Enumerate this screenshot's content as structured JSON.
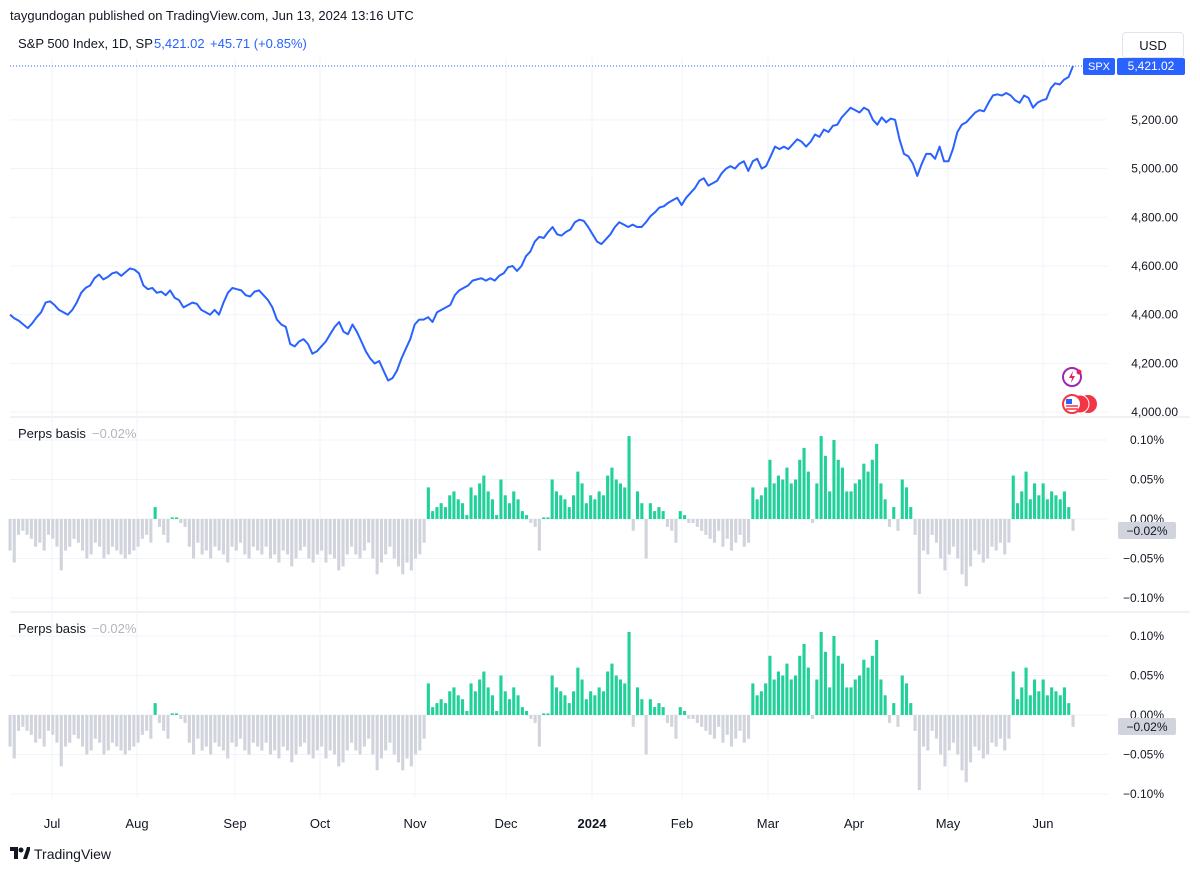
{
  "header": {
    "published_line": "taygundogan published on TradingView.com, Jun 13, 2024 13:16 UTC"
  },
  "main_pane": {
    "symbol_title": "S&P 500 Index, 1D, SP",
    "last_value": "5,421.02",
    "change": "+45.71 (+0.85%)",
    "currency_button": "USD",
    "price_tag_symbol": "SPX",
    "price_tag_value": "5,421.02"
  },
  "indicator_1": {
    "name": "Perps basis",
    "value": "−0.02%",
    "price_tag": "−0.02%"
  },
  "indicator_2": {
    "name": "Perps basis",
    "value": "−0.02%",
    "price_tag": "−0.02%"
  },
  "footer": {
    "brand": "TradingView"
  },
  "colors": {
    "line": "#2962ff",
    "positive_bar": "#22d19a",
    "negative_bar": "#d1d4dc",
    "grid": "#f0f3fa",
    "axis_text": "#131722"
  },
  "chart_data": [
    {
      "type": "line",
      "title": "S&P 500 Index, 1D, SP",
      "y_axis_ticks": [
        "5,200.00",
        "5,000.00",
        "4,800.00",
        "4,600.00",
        "4,400.00",
        "4,200.00",
        "4,000.00"
      ],
      "ylim": [
        3990,
        5430
      ],
      "x_axis_labels": [
        "Jul",
        "Aug",
        "Sep",
        "Oct",
        "Nov",
        "Dec",
        "2024",
        "Feb",
        "Mar",
        "Apr",
        "May",
        "Jun"
      ],
      "series": [
        {
          "values": [
            4400,
            4385,
            4375,
            4360,
            4345,
            4365,
            4390,
            4410,
            4450,
            4455,
            4440,
            4420,
            4410,
            4400,
            4420,
            4450,
            4490,
            4510,
            4520,
            4550,
            4565,
            4545,
            4555,
            4570,
            4575,
            4560,
            4575,
            4590,
            4585,
            4570,
            4520,
            4505,
            4510,
            4490,
            4495,
            4480,
            4500,
            4470,
            4460,
            4430,
            4440,
            4450,
            4445,
            4420,
            4410,
            4400,
            4420,
            4400,
            4450,
            4490,
            4510,
            4505,
            4500,
            4480,
            4475,
            4495,
            4500,
            4480,
            4460,
            4430,
            4380,
            4360,
            4350,
            4280,
            4270,
            4290,
            4300,
            4280,
            4240,
            4250,
            4270,
            4290,
            4320,
            4350,
            4370,
            4330,
            4320,
            4360,
            4330,
            4290,
            4250,
            4220,
            4200,
            4210,
            4170,
            4130,
            4140,
            4170,
            4220,
            4260,
            4300,
            4360,
            4380,
            4380,
            4390,
            4370,
            4410,
            4420,
            4430,
            4440,
            4480,
            4500,
            4510,
            4520,
            4540,
            4545,
            4550,
            4540,
            4550,
            4540,
            4560,
            4570,
            4595,
            4600,
            4580,
            4600,
            4640,
            4660,
            4700,
            4720,
            4715,
            4740,
            4760,
            4730,
            4725,
            4740,
            4750,
            4780,
            4790,
            4785,
            4760,
            4730,
            4700,
            4690,
            4710,
            4730,
            4760,
            4780,
            4770,
            4760,
            4770,
            4760,
            4760,
            4780,
            4805,
            4820,
            4840,
            4845,
            4860,
            4870,
            4880,
            4850,
            4880,
            4900,
            4920,
            4950,
            4960,
            4930,
            4940,
            4950,
            4980,
            5000,
            5010,
            5000,
            5020,
            5030,
            4990,
            5030,
            5040,
            5000,
            5010,
            5050,
            5090,
            5080,
            5090,
            5080,
            5100,
            5120,
            5110,
            5090,
            5110,
            5140,
            5130,
            5160,
            5150,
            5175,
            5180,
            5210,
            5230,
            5250,
            5240,
            5230,
            5250,
            5240,
            5200,
            5180,
            5210,
            5190,
            5205,
            5200,
            5120,
            5060,
            5050,
            5020,
            4970,
            5020,
            5060,
            5060,
            5040,
            5090,
            5030,
            5030,
            5080,
            5150,
            5180,
            5190,
            5210,
            5230,
            5240,
            5235,
            5270,
            5300,
            5305,
            5300,
            5310,
            5300,
            5280,
            5270,
            5300,
            5290,
            5250,
            5270,
            5280,
            5285,
            5330,
            5350,
            5345,
            5365,
            5376,
            5421
          ]
        }
      ]
    },
    {
      "type": "bar",
      "title": "Perps basis",
      "y_axis_ticks": [
        "0.10%",
        "0.05%",
        "0.00%",
        "−0.05%",
        "−0.10%"
      ],
      "ylim": [
        -0.1,
        0.1
      ],
      "values": [
        -0.04,
        -0.055,
        -0.02,
        -0.015,
        -0.02,
        -0.025,
        -0.035,
        -0.03,
        -0.04,
        -0.02,
        -0.025,
        -0.035,
        -0.065,
        -0.04,
        -0.035,
        -0.025,
        -0.03,
        -0.04,
        -0.05,
        -0.045,
        -0.03,
        -0.035,
        -0.05,
        -0.045,
        -0.035,
        -0.04,
        -0.045,
        -0.05,
        -0.045,
        -0.04,
        -0.035,
        -0.025,
        -0.02,
        -0.03,
        0.015,
        -0.01,
        -0.02,
        -0.03,
        0.002,
        0.002,
        -0.005,
        -0.01,
        -0.035,
        -0.05,
        -0.03,
        -0.045,
        -0.04,
        -0.05,
        -0.035,
        -0.04,
        -0.045,
        -0.055,
        -0.035,
        -0.04,
        -0.03,
        -0.045,
        -0.05,
        -0.035,
        -0.04,
        -0.045,
        -0.035,
        -0.05,
        -0.045,
        -0.055,
        -0.04,
        -0.045,
        -0.06,
        -0.05,
        -0.04,
        -0.035,
        -0.05,
        -0.055,
        -0.045,
        -0.04,
        -0.055,
        -0.045,
        -0.05,
        -0.065,
        -0.06,
        -0.045,
        -0.035,
        -0.045,
        -0.05,
        -0.04,
        -0.03,
        -0.05,
        -0.07,
        -0.055,
        -0.045,
        -0.035,
        -0.05,
        -0.06,
        -0.07,
        -0.055,
        -0.065,
        -0.05,
        -0.045,
        -0.03,
        0.04,
        0.01,
        0.015,
        0.02,
        0.015,
        0.03,
        0.035,
        0.025,
        0.02,
        0.005,
        0.04,
        0.03,
        0.045,
        0.055,
        0.035,
        0.025,
        0.005,
        0.05,
        0.03,
        0.02,
        0.035,
        0.025,
        0.01,
        0.005,
        -0.005,
        -0.01,
        -0.04,
        0.002,
        0.002,
        0.05,
        0.035,
        0.03,
        0.025,
        0.015,
        0.03,
        0.06,
        0.045,
        0.02,
        0.03,
        0.025,
        0.035,
        0.03,
        0.055,
        0.065,
        0.05,
        0.045,
        0.04,
        0.105,
        -0.015,
        0.035,
        0.02,
        -0.05,
        0.02,
        0.01,
        0.015,
        0.01,
        -0.01,
        -0.015,
        -0.03,
        0.01,
        0.005,
        -0.005,
        -0.005,
        -0.01,
        -0.015,
        -0.02,
        -0.025,
        -0.03,
        -0.015,
        -0.035,
        -0.025,
        -0.04,
        -0.03,
        -0.02,
        -0.035,
        -0.03,
        0.04,
        0.025,
        0.03,
        0.04,
        0.075,
        0.045,
        0.055,
        0.05,
        0.065,
        0.045,
        0.05,
        0.075,
        0.09,
        0.06,
        -0.005,
        0.045,
        0.105,
        0.08,
        0.035,
        0.1,
        0.075,
        0.065,
        0.035,
        0.035,
        0.045,
        0.05,
        0.07,
        0.06,
        0.075,
        0.095,
        0.045,
        0.025,
        -0.01,
        0.015,
        -0.015,
        0.05,
        0.04,
        0.015,
        -0.02,
        -0.095,
        -0.04,
        -0.045,
        -0.02,
        -0.03,
        -0.05,
        -0.065,
        -0.045,
        -0.035,
        -0.05,
        -0.07,
        -0.085,
        -0.06,
        -0.04,
        -0.045,
        -0.055,
        -0.05,
        -0.035,
        -0.04,
        -0.03,
        -0.045,
        -0.03,
        0.055,
        0.02,
        0.035,
        0.06,
        0.025,
        0.045,
        0.03,
        0.045,
        0.025,
        0.035,
        0.03,
        0.025,
        0.035,
        0.015,
        -0.015
      ]
    },
    {
      "type": "bar",
      "title": "Perps basis",
      "y_axis_ticks": [
        "0.10%",
        "0.05%",
        "0.00%",
        "−0.05%",
        "−0.10%"
      ],
      "ylim": [
        -0.1,
        0.1
      ],
      "same_as": "previous"
    }
  ]
}
